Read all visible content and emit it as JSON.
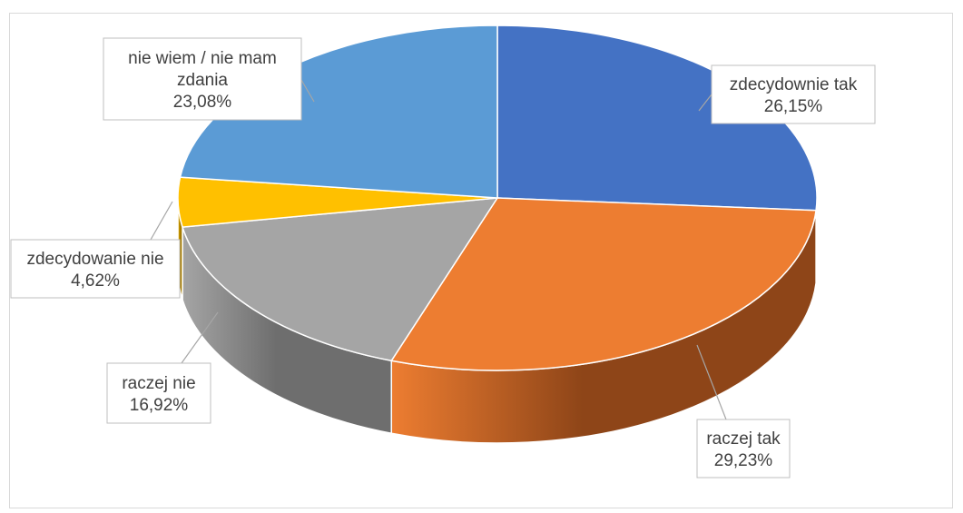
{
  "chart_data": {
    "type": "pie",
    "style": "3d",
    "title": "",
    "slices": [
      {
        "label": "zdecydownie tak",
        "value": 26.15,
        "display": "26,15%",
        "color": "#4472C4",
        "side": "#2B4A82"
      },
      {
        "label": "raczej tak",
        "value": 29.23,
        "display": "29,23%",
        "color": "#ED7D31",
        "side": "#8E4518"
      },
      {
        "label": "raczej nie",
        "value": 16.92,
        "display": "16,92%",
        "color": "#A5A5A5",
        "side": "#6E6E6E"
      },
      {
        "label": "zdecydowanie nie",
        "value": 4.62,
        "display": "4,62%",
        "color": "#FFC000",
        "side": "#A67C00"
      },
      {
        "label": "nie wiem / nie mam zdania",
        "value": 23.08,
        "display": "23,08%",
        "color": "#5B9BD5",
        "side": "#3A6A96"
      }
    ],
    "data_labels": "callouts"
  }
}
